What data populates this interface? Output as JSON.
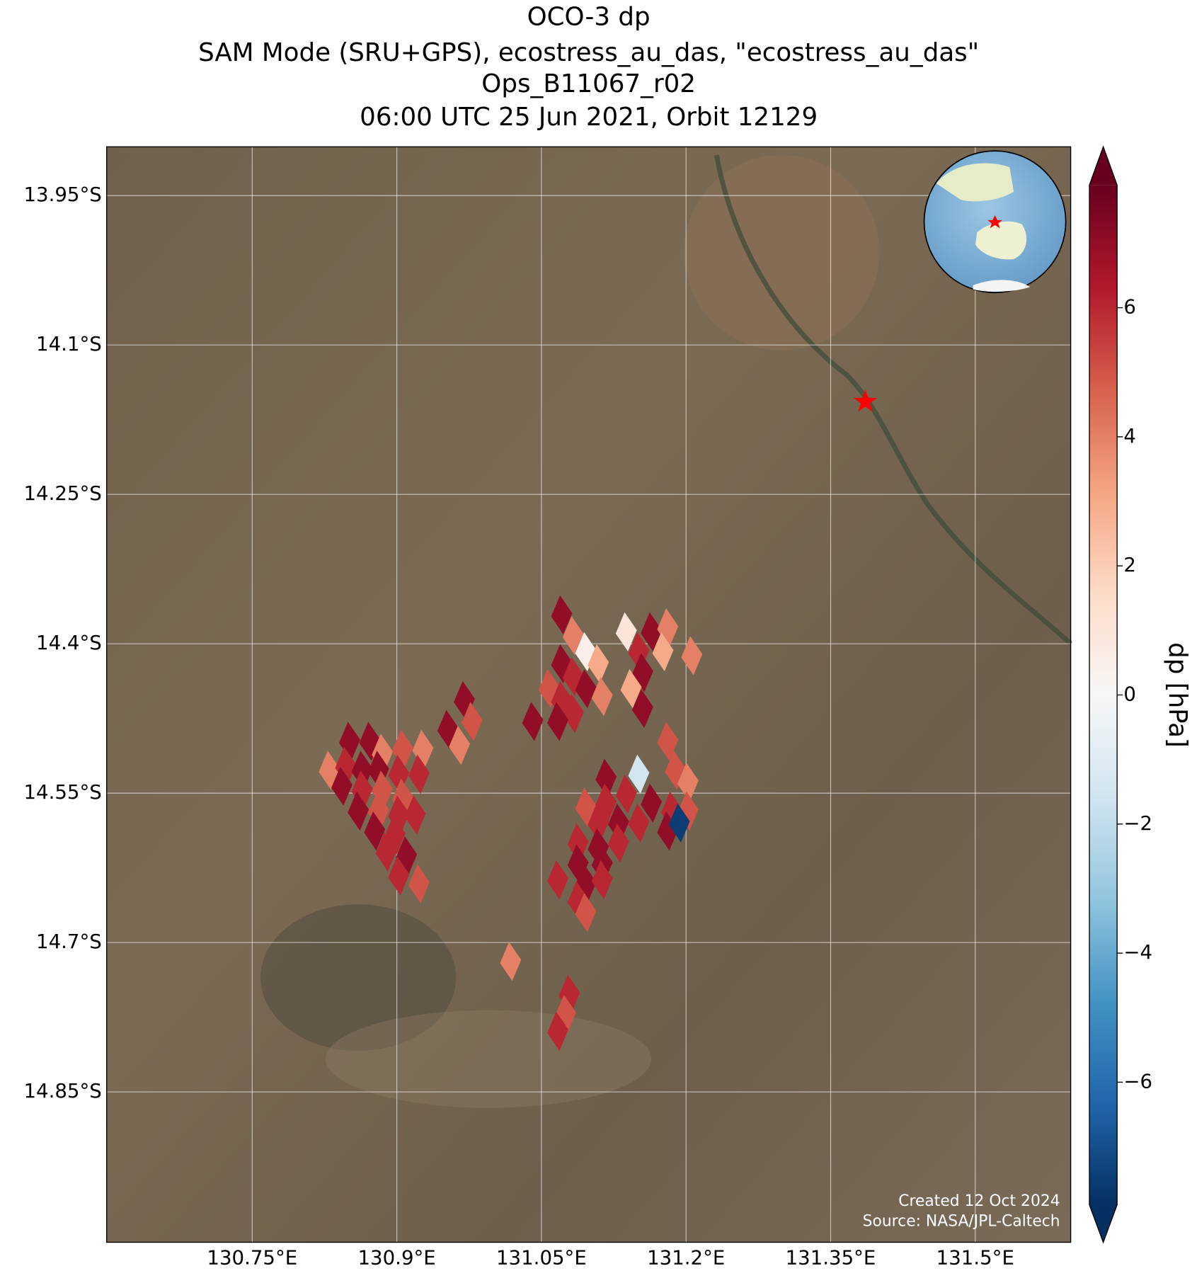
{
  "chart_data": {
    "type": "map",
    "title": [
      "OCO-3 dp",
      "SAM Mode (SRU+GPS), ecostress_au_das, \"ecostress_au_das\"",
      "Ops_B11067_r02",
      "06:00 UTC 25 Jun 2021, Orbit 12129"
    ],
    "xlim": [
      130.599,
      131.599
    ],
    "ylim": [
      -15.001,
      -13.901
    ],
    "xticks": [
      {
        "value": 130.75,
        "label": "130.75°E"
      },
      {
        "value": 130.9,
        "label": "130.9°E"
      },
      {
        "value": 131.05,
        "label": "131.05°E"
      },
      {
        "value": 131.2,
        "label": "131.2°E"
      },
      {
        "value": 131.35,
        "label": "131.35°E"
      },
      {
        "value": 131.5,
        "label": "131.5°E"
      }
    ],
    "yticks": [
      {
        "value": -13.95,
        "label": "13.95°S"
      },
      {
        "value": -14.1,
        "label": "14.1°S"
      },
      {
        "value": -14.25,
        "label": "14.25°S"
      },
      {
        "value": -14.4,
        "label": "14.4°S"
      },
      {
        "value": -14.55,
        "label": "14.55°S"
      },
      {
        "value": -14.7,
        "label": "14.7°S"
      },
      {
        "value": -14.85,
        "label": "14.85°S"
      }
    ],
    "grid": true,
    "colormap": "RdBu_r",
    "clim": [
      -7.9,
      7.9
    ],
    "colorbar_label": "dp [hPa]",
    "colorbar_ticks": [
      {
        "value": -6,
        "label": "−6"
      },
      {
        "value": -4,
        "label": "−4"
      },
      {
        "value": -2,
        "label": "−2"
      },
      0,
      2,
      4,
      6
    ],
    "footprints": {
      "lon": [
        131.071,
        131.083,
        131.096,
        131.071,
        131.109,
        131.083,
        131.058,
        131.096,
        131.071,
        131.113,
        131.083,
        131.067,
        131.041,
        131.138,
        131.164,
        131.181,
        131.151,
        131.176,
        131.206,
        131.155,
        131.143,
        131.155,
        130.97,
        130.978,
        130.953,
        130.965,
        130.851,
        130.872,
        130.885,
        130.906,
        130.927,
        130.83,
        130.847,
        130.864,
        130.881,
        130.902,
        130.923,
        130.843,
        130.864,
        130.885,
        130.906,
        130.86,
        130.881,
        130.902,
        130.919,
        130.877,
        130.898,
        130.889,
        130.91,
        130.902,
        130.923,
        131.117,
        131.151,
        131.181,
        131.189,
        131.202,
        131.096,
        131.117,
        131.138,
        131.164,
        131.185,
        131.202,
        131.109,
        131.13,
        131.151,
        131.181,
        131.193,
        131.088,
        131.109,
        131.13,
        131.088,
        131.113,
        131.067,
        131.096,
        131.113,
        131.088,
        131.096,
        131.018,
        131.079,
        131.075,
        131.067
      ],
      "lat": [
        -14.371,
        -14.392,
        -14.408,
        -14.42,
        -14.42,
        -14.433,
        -14.445,
        -14.445,
        -14.457,
        -14.453,
        -14.47,
        -14.478,
        -14.478,
        -14.388,
        -14.388,
        -14.384,
        -14.408,
        -14.408,
        -14.412,
        -14.429,
        -14.445,
        -14.465,
        -14.457,
        -14.478,
        -14.486,
        -14.502,
        -14.498,
        -14.498,
        -14.51,
        -14.506,
        -14.506,
        -14.527,
        -14.523,
        -14.527,
        -14.527,
        -14.531,
        -14.531,
        -14.543,
        -14.547,
        -14.547,
        -14.555,
        -14.568,
        -14.568,
        -14.572,
        -14.572,
        -14.588,
        -14.592,
        -14.609,
        -14.613,
        -14.633,
        -14.641,
        -14.535,
        -14.531,
        -14.498,
        -14.527,
        -14.539,
        -14.564,
        -14.56,
        -14.551,
        -14.56,
        -14.568,
        -14.568,
        -14.58,
        -14.58,
        -14.58,
        -14.588,
        -14.58,
        -14.6,
        -14.605,
        -14.6,
        -14.621,
        -14.621,
        -14.637,
        -14.641,
        -14.637,
        -14.658,
        -14.67,
        -14.719,
        -14.752,
        -14.772,
        -14.789
      ],
      "values": [
        7,
        4,
        0.5,
        7,
        3,
        6,
        5,
        7,
        6,
        4,
        6,
        7,
        7,
        1,
        7,
        4,
        6,
        3,
        4,
        7,
        3,
        7,
        7,
        5,
        7,
        4,
        7,
        7,
        4,
        5,
        4,
        4,
        6,
        7,
        7,
        6,
        6,
        7,
        6,
        5,
        5,
        7,
        5,
        6,
        6,
        7,
        6,
        6,
        7,
        6,
        5,
        7,
        -1.5,
        5,
        5,
        4,
        5,
        6,
        6,
        7,
        6,
        5,
        6,
        7,
        6,
        7,
        -7.5,
        6,
        7,
        6,
        7,
        7,
        6,
        7,
        6,
        6,
        5,
        4,
        6,
        5,
        6
      ]
    },
    "site": {
      "lon": 131.386,
      "lat": -14.157
    },
    "credits": [
      "Created 12 Oct 2024",
      "Source: NASA/JPL-Caltech"
    ]
  }
}
